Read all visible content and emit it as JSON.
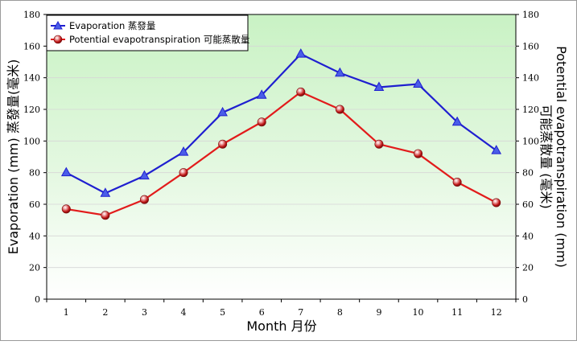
{
  "chart_data": {
    "type": "line",
    "categories": [
      "1",
      "2",
      "3",
      "4",
      "5",
      "6",
      "7",
      "8",
      "9",
      "10",
      "11",
      "12"
    ],
    "series": [
      {
        "name": "Evaporation 蒸發量",
        "values": [
          80,
          67,
          78,
          93,
          118,
          129,
          155,
          143,
          134,
          136,
          112,
          94
        ],
        "color": "#1f1fd0",
        "marker": "triangle"
      },
      {
        "name": "Potential evapotranspiration 可能蒸散量",
        "values": [
          57,
          53,
          63,
          80,
          98,
          112,
          131,
          120,
          98,
          92,
          74,
          61
        ],
        "color": "#e21b1b",
        "marker": "sphere"
      }
    ],
    "xlabel": "Month 月份",
    "ylabel_left": "Evaporation (mm) 蒸發量(毫米)",
    "ylabel_right_line1": "Potential evapotranspiration (mm)",
    "ylabel_right_line2": "可能蒸散量 (毫米)",
    "ylim": [
      0,
      180
    ],
    "yticks": [
      0,
      20,
      40,
      60,
      80,
      100,
      120,
      140,
      160,
      180
    ],
    "legend_position": "top-left",
    "plot_background": "gradient light-green to white"
  }
}
